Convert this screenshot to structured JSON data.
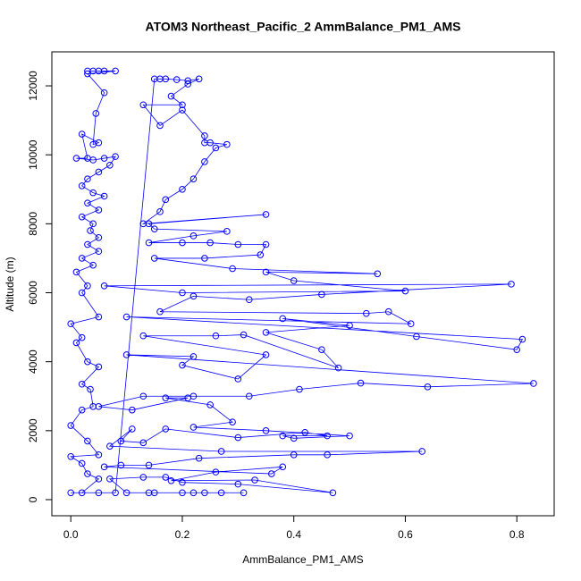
{
  "chart_data": {
    "type": "line",
    "title": "ATOM3 Northeast_Pacific_2 AmmBalance_PM1_AMS",
    "x_label": "AmmBalance_PM1_AMS",
    "y_label": "Altitude (m)",
    "xlim": [
      -0.034,
      0.867
    ],
    "ylim": [
      -467,
      12986
    ],
    "xticks": [
      {
        "value": 0,
        "label": "0.0"
      },
      {
        "value": 0.2,
        "label": "0.2"
      },
      {
        "value": 0.4,
        "label": "0.4"
      },
      {
        "value": 0.6,
        "label": "0.6"
      },
      {
        "value": 0.8,
        "label": "0.8"
      }
    ],
    "yticks": [
      0,
      2000,
      4000,
      6000,
      8000,
      10000,
      12000
    ],
    "series": [
      {
        "color": "#0000ff",
        "x": [
          0.03,
          0.04,
          0.05,
          0.06,
          0.08,
          0.03,
          0.06,
          0.045,
          0.04,
          0.05,
          0.02,
          0.03,
          0.01,
          0.04,
          0.06,
          0.08,
          0.07,
          0.05,
          0.03,
          0.02,
          0.04,
          0.06,
          0.03,
          0.05,
          0.02,
          0.04,
          0.035,
          0.05,
          0.03,
          0.05,
          0.02,
          0.04,
          0.01,
          0.03,
          0.02,
          0.05,
          0.0,
          0.02,
          0.01,
          0.03,
          0.05,
          0.02,
          0.035,
          0.04,
          0.02,
          0.0,
          0.03,
          0.05,
          0.0,
          0.02,
          0.03,
          0.05,
          0.02,
          0.0,
          0.05,
          0.08,
          0.15,
          0.16,
          0.17,
          0.19,
          0.21,
          0.23,
          0.21,
          0.18,
          0.2,
          0.13,
          0.16,
          0.2,
          0.24,
          0.24,
          0.25,
          0.28,
          0.26,
          0.24,
          0.22,
          0.2,
          0.17,
          0.16,
          0.13,
          0.35,
          0.14,
          0.15,
          0.28,
          0.22,
          0.14,
          0.2,
          0.25,
          0.3,
          0.35,
          0.34,
          0.24,
          0.15,
          0.29,
          0.55,
          0.35,
          0.4,
          0.6,
          0.2,
          0.06,
          0.79,
          0.45,
          0.32,
          0.22,
          0.16,
          0.53,
          0.57,
          0.61,
          0.1,
          0.81,
          0.8,
          0.62,
          0.38,
          0.5,
          0.35,
          0.45,
          0.48,
          0.31,
          0.26,
          0.13,
          0.35,
          0.3,
          0.2,
          0.22,
          0.1,
          0.83,
          0.64,
          0.52,
          0.41,
          0.32,
          0.22,
          0.13,
          0.05,
          0.11,
          0.21,
          0.17,
          0.25,
          0.29,
          0.22,
          0.35,
          0.5,
          0.4,
          0.38,
          0.46,
          0.42,
          0.3,
          0.17,
          0.13,
          0.09,
          0.11,
          0.07,
          0.27,
          0.63,
          0.46,
          0.4,
          0.23,
          0.14,
          0.09,
          0.06,
          0.36,
          0.38,
          0.26,
          0.18,
          0.33,
          0.47,
          0.3,
          0.2,
          0.17,
          0.13,
          0.07,
          0.1,
          0.15,
          0.22,
          0.27,
          0.31,
          0.14,
          0.2,
          0.24
        ],
        "values": [
          12430,
          12430,
          12430,
          12430,
          12430,
          12350,
          11800,
          11200,
          10300,
          10350,
          10600,
          9900,
          9900,
          9850,
          9900,
          9950,
          9700,
          9500,
          9300,
          9100,
          8900,
          8800,
          8600,
          8400,
          8200,
          8000,
          7800,
          7600,
          7400,
          7200,
          7000,
          6800,
          6600,
          6200,
          6000,
          5300,
          5100,
          4700,
          4550,
          4000,
          3850,
          3350,
          3200,
          2700,
          2600,
          2150,
          1700,
          1300,
          1250,
          1050,
          750,
          600,
          200,
          200,
          200,
          200,
          12200,
          12200,
          12200,
          12180,
          12150,
          12200,
          12050,
          11700,
          11450,
          11450,
          10850,
          11300,
          10550,
          10350,
          10350,
          10300,
          10200,
          9800,
          9300,
          9000,
          8700,
          8350,
          8000,
          8270,
          8000,
          7850,
          7780,
          7650,
          7450,
          7450,
          7450,
          7400,
          7400,
          7100,
          7000,
          7000,
          6700,
          6550,
          6600,
          6350,
          6050,
          6000,
          6200,
          6250,
          5950,
          5800,
          5900,
          5450,
          5400,
          5450,
          5100,
          5300,
          4650,
          4350,
          4730,
          5250,
          5050,
          4850,
          4350,
          3820,
          4780,
          4750,
          4750,
          4200,
          3500,
          3900,
          4150,
          4200,
          3370,
          3270,
          3380,
          3200,
          3000,
          3000,
          3000,
          2700,
          2600,
          2950,
          2950,
          2750,
          2250,
          2100,
          2000,
          1850,
          1780,
          1850,
          1850,
          1950,
          1800,
          2050,
          1650,
          1700,
          2050,
          1550,
          1400,
          1400,
          1300,
          1300,
          1200,
          1000,
          1000,
          950,
          750,
          950,
          800,
          550,
          570,
          200,
          450,
          500,
          650,
          650,
          600,
          200,
          200,
          200,
          200,
          200,
          200,
          200,
          200
        ]
      }
    ]
  }
}
